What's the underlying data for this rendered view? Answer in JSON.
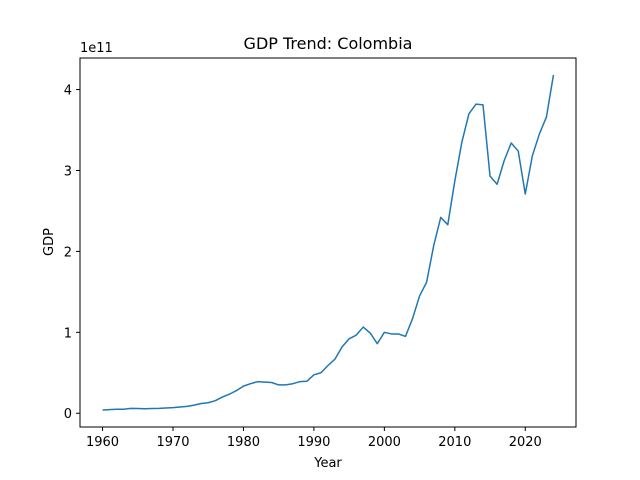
{
  "chart_data": {
    "type": "line",
    "title": "GDP Trend: Colombia",
    "xlabel": "Year",
    "ylabel": "GDP",
    "offset_text": "1e11",
    "xlim": [
      1956.8,
      2027.2
    ],
    "ylim": [
      -0.17,
      4.39
    ],
    "xticks": [
      1960,
      1970,
      1980,
      1990,
      2000,
      2010,
      2020
    ],
    "xtick_labels": [
      "1960",
      "1970",
      "1980",
      "1990",
      "2000",
      "2010",
      "2020"
    ],
    "yticks": [
      0,
      1,
      2,
      3,
      4
    ],
    "ytick_labels": [
      "0",
      "1",
      "2",
      "3",
      "4"
    ],
    "grid": false,
    "line_color": "#1f77b4",
    "x": [
      1960,
      1961,
      1962,
      1963,
      1964,
      1965,
      1966,
      1967,
      1968,
      1969,
      1970,
      1971,
      1972,
      1973,
      1974,
      1975,
      1976,
      1977,
      1978,
      1979,
      1980,
      1981,
      1982,
      1983,
      1984,
      1985,
      1986,
      1987,
      1988,
      1989,
      1990,
      1991,
      1992,
      1993,
      1994,
      1995,
      1996,
      1997,
      1998,
      1999,
      2000,
      2001,
      2002,
      2003,
      2004,
      2005,
      2006,
      2007,
      2008,
      2009,
      2010,
      2011,
      2012,
      2013,
      2014,
      2015,
      2016,
      2017,
      2018,
      2019,
      2020,
      2021,
      2022,
      2023,
      2024
    ],
    "y": [
      0.04,
      0.045,
      0.05,
      0.05,
      0.06,
      0.058,
      0.055,
      0.058,
      0.06,
      0.065,
      0.07,
      0.077,
      0.085,
      0.1,
      0.12,
      0.13,
      0.155,
      0.2,
      0.235,
      0.28,
      0.335,
      0.365,
      0.39,
      0.385,
      0.38,
      0.35,
      0.35,
      0.365,
      0.39,
      0.395,
      0.475,
      0.5,
      0.59,
      0.67,
      0.82,
      0.92,
      0.965,
      1.065,
      0.99,
      0.86,
      1.0,
      0.98,
      0.98,
      0.95,
      1.17,
      1.45,
      1.62,
      2.07,
      2.42,
      2.33,
      2.87,
      3.35,
      3.7,
      3.82,
      3.81,
      2.93,
      2.83,
      3.12,
      3.34,
      3.24,
      2.71,
      3.18,
      3.45,
      3.66,
      4.18
    ],
    "y_multiplier": 100000000000
  }
}
